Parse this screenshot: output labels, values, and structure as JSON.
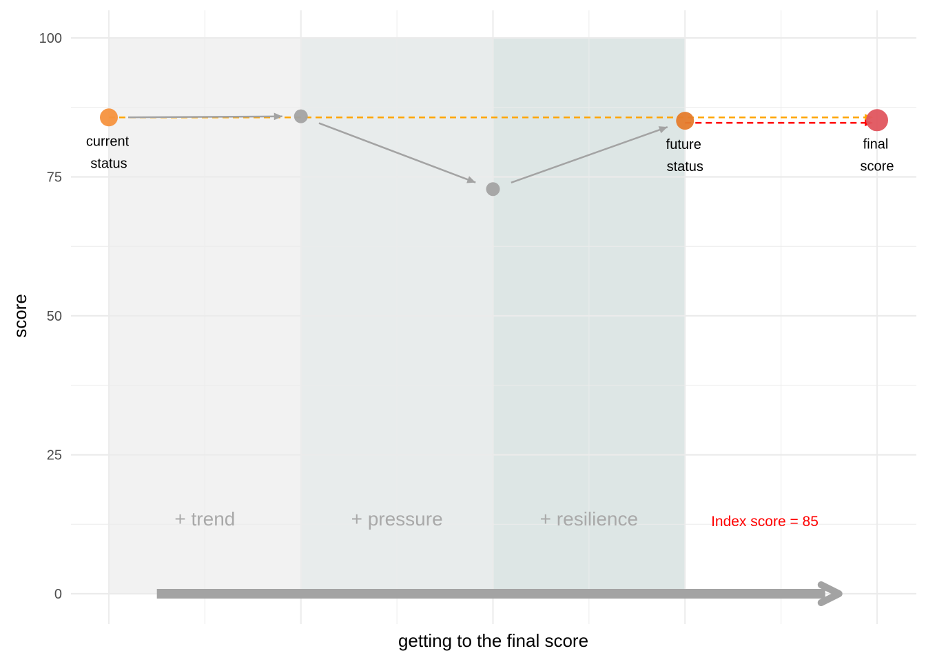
{
  "chart_data": {
    "type": "line",
    "xlabel": "getting to the final score",
    "ylabel": "score",
    "ylim": [
      0,
      100
    ],
    "y_ticks": [
      "0",
      "25",
      "50",
      "75",
      "100"
    ],
    "x_range": [
      0,
      4
    ],
    "grid": true,
    "regions": [
      {
        "label": "+ trend",
        "x_start": 0,
        "x_end": 1,
        "color": "#f2f2f2"
      },
      {
        "label": "+ pressure",
        "x_start": 1,
        "x_end": 2,
        "color": "#e8ecec"
      },
      {
        "label": "+ resilience",
        "x_start": 2,
        "x_end": 3,
        "color": "#dde6e5"
      }
    ],
    "points": [
      {
        "x": 0,
        "y": 85.7,
        "label_line1": "current",
        "label_line2": "status",
        "color": "#f5923e",
        "r": 13
      },
      {
        "x": 1,
        "y": 85.9,
        "label_line1": "",
        "label_line2": "",
        "color": "#a3a3a3",
        "r": 10
      },
      {
        "x": 2,
        "y": 72.8,
        "label_line1": "",
        "label_line2": "",
        "color": "#a3a3a3",
        "r": 10
      },
      {
        "x": 3,
        "y": 85.1,
        "label_line1": "future",
        "label_line2": "status",
        "color": "#e57c2d",
        "r": 13
      },
      {
        "x": 4,
        "y": 85.2,
        "label_line1": "final",
        "label_line2": "score",
        "color": "#e0555e",
        "r": 16
      }
    ],
    "reference_line_orange": {
      "y": 85.7,
      "x_from": 0,
      "x_to": 3.85,
      "color": "#ffa500"
    },
    "reference_line_red": {
      "y": 85.1,
      "x_from": 3,
      "x_to": 3.85,
      "color": "#ff0000"
    },
    "annotation_text": "Index score =  85",
    "annotation_color": "#ff0000",
    "arrow_color": "#a3a3a3"
  }
}
